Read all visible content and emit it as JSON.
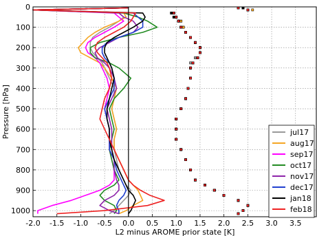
{
  "chart_data": {
    "type": "line",
    "title": "",
    "xlabel": "L2 minus AROME prior state [K]",
    "ylabel": "Pressure [hPa]",
    "xlim": [
      -2.0,
      3.95
    ],
    "ylim": [
      1030,
      0
    ],
    "y_inverted": true,
    "grid": true,
    "legend_position": "lower-right",
    "x_ticks": [
      "-2.0",
      "-1.5",
      "-1.0",
      "-0.5",
      "0.0",
      "0.5",
      "1.0",
      "1.5",
      "2.0",
      "2.5",
      "3.0",
      "3.5"
    ],
    "x_tick_values": [
      -2.0,
      -1.5,
      -1.0,
      -0.5,
      0.0,
      0.5,
      1.0,
      1.5,
      2.0,
      2.5,
      3.0,
      3.5
    ],
    "y_ticks": [
      "0",
      "100",
      "200",
      "300",
      "400",
      "500",
      "600",
      "700",
      "800",
      "900",
      "1000"
    ],
    "y_tick_values": [
      0,
      100,
      200,
      300,
      400,
      500,
      600,
      700,
      800,
      900,
      1000
    ],
    "reference_line_x": 0.0,
    "pressure_levels": [
      5,
      15,
      30,
      50,
      70,
      100,
      125,
      150,
      175,
      200,
      225,
      250,
      275,
      300,
      350,
      400,
      450,
      500,
      550,
      600,
      650,
      700,
      750,
      800,
      850,
      875,
      900,
      925,
      950,
      975,
      1000,
      1015
    ],
    "series": [
      {
        "name": "jul17",
        "color": "#999999",
        "bias": [
          0.0,
          -2.0,
          -0.2,
          -0.1,
          -0.2,
          -0.4,
          -0.6,
          -0.75,
          -0.8,
          -0.8,
          -0.75,
          -0.65,
          -0.55,
          -0.5,
          -0.4,
          -0.3,
          -0.3,
          -0.35,
          -0.3,
          -0.25,
          -0.3,
          -0.3,
          -0.25,
          -0.2,
          -0.1,
          -0.05,
          0.05,
          0.0,
          -0.1,
          -0.2,
          -0.3,
          -0.4
        ],
        "std": [
          2.4,
          2.5,
          0.9,
          1.0,
          1.1,
          1.15,
          1.2,
          1.3,
          1.4,
          1.5,
          1.5,
          1.4,
          1.3,
          1.3,
          1.3,
          1.25,
          1.2,
          1.1,
          1.0,
          1.0,
          1.0,
          1.1,
          1.2,
          1.3,
          1.4,
          1.6,
          1.8,
          2.0,
          2.3,
          2.5,
          2.4,
          2.3
        ]
      },
      {
        "name": "aug17",
        "color": "#f5a623",
        "bias": [
          0.0,
          -2.0,
          -0.1,
          -0.05,
          -0.2,
          -0.5,
          -0.7,
          -0.85,
          -0.95,
          -1.05,
          -1.0,
          -0.8,
          -0.6,
          -0.5,
          -0.35,
          -0.25,
          -0.3,
          -0.35,
          -0.3,
          -0.25,
          -0.3,
          -0.3,
          -0.2,
          -0.1,
          0.0,
          0.1,
          0.2,
          0.25,
          0.3,
          0.1,
          -0.05,
          -0.2
        ],
        "std": [
          2.4,
          2.6,
          0.95,
          1.0,
          1.1,
          1.15,
          1.2,
          1.3,
          1.4,
          1.5,
          1.5,
          1.45,
          1.35,
          1.3,
          1.3,
          1.25,
          1.2,
          1.1,
          1.0,
          1.0,
          1.0,
          1.1,
          1.2,
          1.3,
          1.4,
          1.6,
          1.8,
          2.0,
          2.3,
          2.5,
          2.4,
          2.3
        ]
      },
      {
        "name": "sep17",
        "color": "#ff00ff",
        "bias": [
          0.0,
          -2.0,
          -0.3,
          -0.2,
          -0.1,
          -0.3,
          -0.5,
          -0.7,
          -0.85,
          -0.9,
          -0.85,
          -0.7,
          -0.6,
          -0.55,
          -0.45,
          -0.4,
          -0.45,
          -0.5,
          -0.45,
          -0.4,
          -0.4,
          -0.4,
          -0.35,
          -0.3,
          -0.3,
          -0.4,
          -0.6,
          -0.9,
          -1.2,
          -1.6,
          -1.9,
          -1.9
        ],
        "std": [
          2.3,
          2.5,
          0.95,
          1.0,
          1.05,
          1.1,
          1.2,
          1.3,
          1.4,
          1.5,
          1.5,
          1.45,
          1.35,
          1.3,
          1.3,
          1.25,
          1.2,
          1.1,
          1.0,
          1.0,
          1.0,
          1.1,
          1.2,
          1.3,
          1.4,
          1.6,
          1.8,
          2.0,
          2.3,
          2.5,
          2.4,
          2.3
        ]
      },
      {
        "name": "oct17",
        "color": "#228b22",
        "bias": [
          0.0,
          -2.0,
          -0.1,
          0.2,
          0.4,
          0.6,
          0.3,
          -0.2,
          -0.6,
          -0.8,
          -0.8,
          -0.7,
          -0.4,
          -0.2,
          0.05,
          -0.1,
          -0.3,
          -0.4,
          -0.35,
          -0.3,
          -0.35,
          -0.4,
          -0.35,
          -0.3,
          -0.2,
          -0.3,
          -0.5,
          -0.6,
          -0.5,
          -0.3,
          -0.25,
          -0.3
        ],
        "std": [
          2.4,
          2.5,
          0.9,
          0.95,
          1.05,
          1.1,
          1.2,
          1.3,
          1.4,
          1.5,
          1.5,
          1.45,
          1.35,
          1.3,
          1.3,
          1.25,
          1.2,
          1.1,
          1.0,
          1.0,
          1.0,
          1.1,
          1.2,
          1.3,
          1.4,
          1.6,
          1.8,
          2.0,
          2.3,
          2.5,
          2.4,
          2.3
        ]
      },
      {
        "name": "nov17",
        "color": "#8e24aa",
        "bias": [
          0.0,
          -2.0,
          -0.2,
          -0.1,
          0.1,
          0.2,
          0.1,
          -0.2,
          -0.4,
          -0.6,
          -0.7,
          -0.65,
          -0.5,
          -0.4,
          -0.3,
          -0.25,
          -0.35,
          -0.45,
          -0.4,
          -0.35,
          -0.35,
          -0.35,
          -0.3,
          -0.3,
          -0.25,
          -0.2,
          -0.2,
          -0.3,
          -0.5,
          -0.6,
          -0.4,
          -0.2
        ],
        "std": [
          2.4,
          2.5,
          0.95,
          1.0,
          1.05,
          1.1,
          1.2,
          1.3,
          1.4,
          1.5,
          1.5,
          1.45,
          1.35,
          1.3,
          1.3,
          1.25,
          1.2,
          1.1,
          1.0,
          1.0,
          1.0,
          1.1,
          1.2,
          1.3,
          1.4,
          1.6,
          1.8,
          2.0,
          2.3,
          2.5,
          2.4,
          2.3
        ]
      },
      {
        "name": "dec17",
        "color": "#1f3fcf",
        "bias": [
          0.0,
          -2.0,
          0.1,
          0.2,
          0.3,
          0.3,
          0.1,
          -0.2,
          -0.45,
          -0.55,
          -0.55,
          -0.5,
          -0.4,
          -0.35,
          -0.3,
          -0.3,
          -0.4,
          -0.5,
          -0.45,
          -0.4,
          -0.4,
          -0.4,
          -0.3,
          -0.25,
          -0.15,
          -0.1,
          -0.05,
          -0.1,
          -0.2,
          -0.25,
          -0.2,
          -0.2
        ],
        "std": [
          2.4,
          2.5,
          0.9,
          0.95,
          1.05,
          1.1,
          1.2,
          1.3,
          1.4,
          1.5,
          1.5,
          1.45,
          1.35,
          1.3,
          1.3,
          1.25,
          1.2,
          1.1,
          1.0,
          1.0,
          1.0,
          1.1,
          1.2,
          1.3,
          1.4,
          1.6,
          1.8,
          2.0,
          2.3,
          2.5,
          2.4,
          2.3
        ]
      },
      {
        "name": "jan18",
        "color": "#000000",
        "bias": [
          0.0,
          -2.0,
          0.3,
          0.35,
          0.3,
          0.1,
          -0.1,
          -0.3,
          -0.45,
          -0.5,
          -0.5,
          -0.45,
          -0.4,
          -0.35,
          -0.3,
          -0.35,
          -0.4,
          -0.45,
          -0.45,
          -0.4,
          -0.4,
          -0.35,
          -0.3,
          -0.2,
          -0.1,
          -0.05,
          0.0,
          0.1,
          0.15,
          0.1,
          0.05,
          0.0
        ],
        "std": [
          2.4,
          2.5,
          0.9,
          0.95,
          1.05,
          1.1,
          1.2,
          1.3,
          1.4,
          1.5,
          1.5,
          1.45,
          1.35,
          1.3,
          1.3,
          1.25,
          1.2,
          1.1,
          1.0,
          1.0,
          1.0,
          1.1,
          1.2,
          1.3,
          1.4,
          1.6,
          1.8,
          2.0,
          2.3,
          2.5,
          2.4,
          2.3
        ]
      },
      {
        "name": "feb18",
        "color": "#ee2222",
        "bias": [
          0.0,
          -2.0,
          0.15,
          0.1,
          0.05,
          -0.1,
          -0.3,
          -0.5,
          -0.65,
          -0.7,
          -0.65,
          -0.55,
          -0.45,
          -0.4,
          -0.35,
          -0.4,
          -0.5,
          -0.55,
          -0.6,
          -0.5,
          -0.4,
          -0.3,
          -0.2,
          -0.1,
          0.0,
          0.1,
          0.25,
          0.45,
          0.75,
          0.4,
          -0.5,
          -1.5
        ],
        "std": [
          2.3,
          2.5,
          0.95,
          1.0,
          1.05,
          1.1,
          1.2,
          1.3,
          1.4,
          1.5,
          1.5,
          1.45,
          1.35,
          1.3,
          1.3,
          1.25,
          1.2,
          1.1,
          1.0,
          1.0,
          1.0,
          1.1,
          1.2,
          1.3,
          1.4,
          1.6,
          1.8,
          2.0,
          2.3,
          2.5,
          2.4,
          2.3
        ]
      }
    ]
  }
}
